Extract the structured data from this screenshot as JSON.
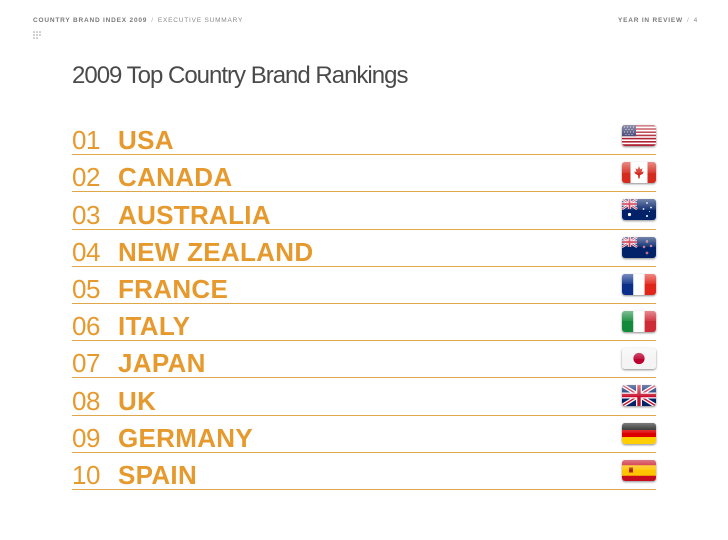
{
  "header": {
    "index_title": "COUNTRY BRAND INDEX 2009",
    "separator": "/",
    "section": "EXECUTIVE SUMMARY",
    "year_label": "YEAR IN REVIEW",
    "page_separator": "/",
    "page_number": "4"
  },
  "page": {
    "title": "2009 Top Country Brand Rankings"
  },
  "rankings": [
    {
      "rank": "01",
      "country": "USA",
      "flag": "usa-flag-icon"
    },
    {
      "rank": "02",
      "country": "CANADA",
      "flag": "canada-flag-icon"
    },
    {
      "rank": "03",
      "country": "AUSTRALIA",
      "flag": "australia-flag-icon"
    },
    {
      "rank": "04",
      "country": "NEW ZEALAND",
      "flag": "new-zealand-flag-icon"
    },
    {
      "rank": "05",
      "country": "FRANCE",
      "flag": "france-flag-icon"
    },
    {
      "rank": "06",
      "country": "ITALY",
      "flag": "italy-flag-icon"
    },
    {
      "rank": "07",
      "country": "JAPAN",
      "flag": "japan-flag-icon"
    },
    {
      "rank": "08",
      "country": "UK",
      "flag": "uk-flag-icon"
    },
    {
      "rank": "09",
      "country": "GERMANY",
      "flag": "germany-flag-icon"
    },
    {
      "rank": "10",
      "country": "SPAIN",
      "flag": "spain-flag-icon"
    }
  ],
  "colors": {
    "accent": "#e69a2e",
    "rule": "#e0a64a",
    "title": "#4a4a4a",
    "header": "#8a8a8a"
  }
}
